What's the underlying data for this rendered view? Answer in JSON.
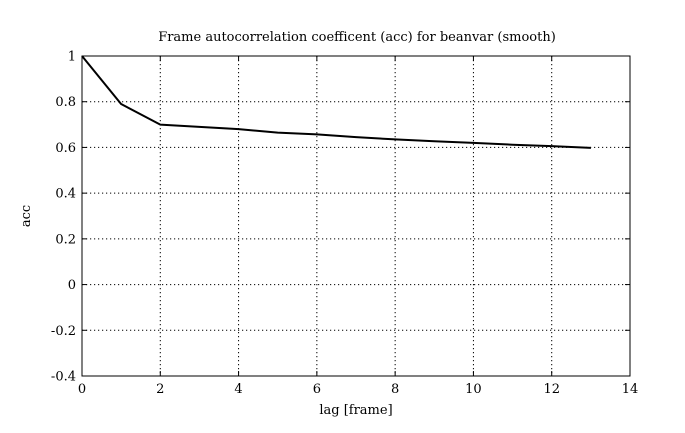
{
  "chart_data": {
    "type": "line",
    "title": "Frame autocorrelation coefficent (acc) for beanvar (smooth)",
    "xlabel": "lag [frame]",
    "ylabel": "acc",
    "xlim": [
      0,
      14
    ],
    "ylim": [
      -0.4,
      1
    ],
    "xticks": [
      0,
      2,
      4,
      6,
      8,
      10,
      12,
      14
    ],
    "xtick_labels": [
      "0",
      "2",
      "4",
      "6",
      "8",
      "10",
      "12",
      "14"
    ],
    "yticks": [
      -0.4,
      -0.2,
      0,
      0.2,
      0.4,
      0.6,
      0.8,
      1
    ],
    "ytick_labels": [
      "-0.4",
      "-0.2",
      "0",
      "0.2",
      "0.4",
      "0.6",
      "0.8",
      "1"
    ],
    "grid": true,
    "grid_style": "dotted",
    "line_color": "#000000",
    "series": [
      {
        "x": [
          0,
          1,
          2,
          3,
          4,
          5,
          6,
          7,
          8,
          9,
          10,
          11,
          12,
          13
        ],
        "values": [
          1.0,
          0.79,
          0.7,
          0.69,
          0.68,
          0.665,
          0.657,
          0.645,
          0.635,
          0.627,
          0.62,
          0.612,
          0.606,
          0.598
        ]
      }
    ]
  }
}
